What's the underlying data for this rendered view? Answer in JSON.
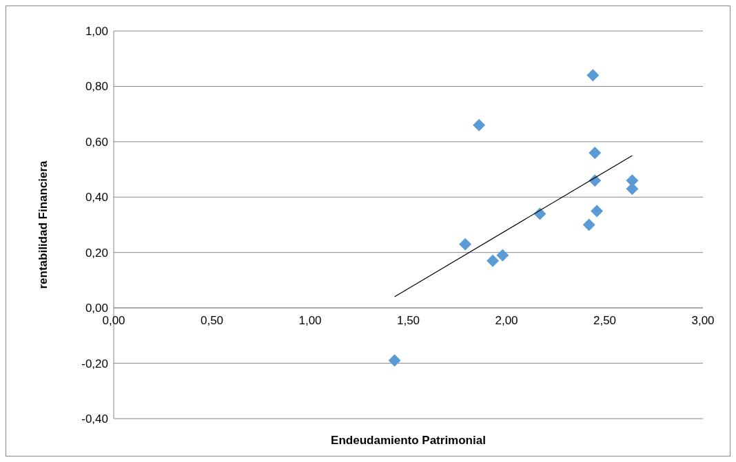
{
  "chart_data": {
    "type": "scatter",
    "xlabel": "Endeudamiento Patrimonial",
    "ylabel": "rentabilidad Financiera",
    "xlim": [
      0,
      3
    ],
    "xticks": [
      {
        "value": 0,
        "label": "0,00"
      },
      {
        "value": 0.5,
        "label": "0,50"
      },
      {
        "value": 1,
        "label": "1,00"
      },
      {
        "value": 1.5,
        "label": "1,50"
      },
      {
        "value": 2,
        "label": "2,00"
      },
      {
        "value": 2.5,
        "label": "2,50"
      },
      {
        "value": 3,
        "label": "3,00"
      }
    ],
    "ylim": [
      -0.4,
      1
    ],
    "yticks": [
      {
        "value": -0.4,
        "label": "-0,40"
      },
      {
        "value": -0.2,
        "label": "-0,20"
      },
      {
        "value": 0,
        "label": "0,00"
      },
      {
        "value": 0.2,
        "label": "0,20"
      },
      {
        "value": 0.4,
        "label": "0,40"
      },
      {
        "value": 0.6,
        "label": "0,60"
      },
      {
        "value": 0.8,
        "label": "0,80"
      },
      {
        "value": 1,
        "label": "1,00"
      }
    ],
    "grid": "y",
    "marker": "diamond",
    "series": [
      {
        "color": "#5b9bd5",
        "x": [
          1.43,
          1.79,
          1.86,
          1.93,
          1.98,
          2.17,
          2.42,
          2.44,
          2.45,
          2.45,
          2.46,
          2.64,
          2.64
        ],
        "values": [
          -0.19,
          0.23,
          0.66,
          0.17,
          0.19,
          0.34,
          0.3,
          0.84,
          0.46,
          0.56,
          0.35,
          0.46,
          0.43
        ]
      },
      {
        "type": "line",
        "color": "#000000",
        "marker": "none",
        "x": [
          1.43,
          2.64
        ],
        "values": [
          0.04,
          0.55
        ]
      }
    ]
  }
}
